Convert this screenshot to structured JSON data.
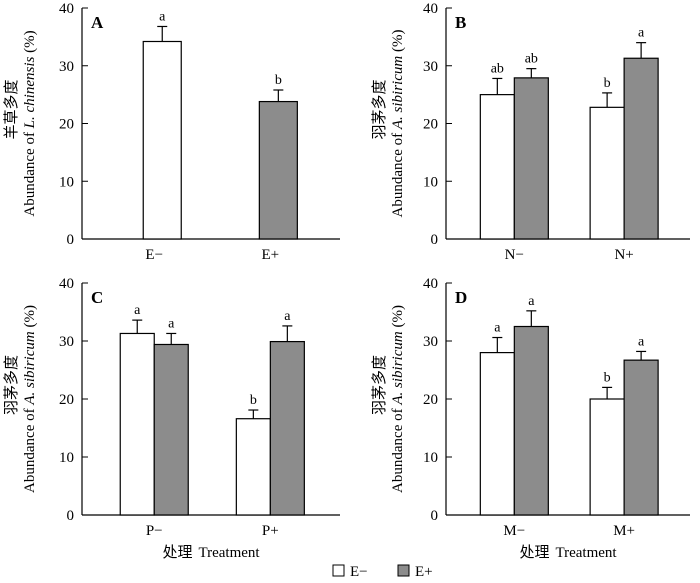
{
  "chart_data": [
    {
      "panel": "A",
      "type": "bar",
      "categories": [
        "E−",
        "E+"
      ],
      "series": [
        {
          "name": "E−",
          "values": [
            34.2,
            null
          ],
          "errors": [
            2.6,
            null
          ],
          "letters": [
            "a",
            ""
          ]
        },
        {
          "name": "E+",
          "values": [
            null,
            23.8
          ],
          "errors": [
            null,
            2.0
          ],
          "letters": [
            "",
            "b"
          ]
        }
      ],
      "ylabel_cn": "羊草多度",
      "ylabel_prefix": "Abundance of ",
      "ylabel_species": "L. chinensis",
      "ylabel_unit": " (%)",
      "xlabel_cn": "",
      "xlabel_en": "",
      "ylim": [
        0,
        40
      ],
      "yticks": [
        0,
        10,
        20,
        30,
        40
      ]
    },
    {
      "panel": "B",
      "type": "bar",
      "categories": [
        "N−",
        "N+"
      ],
      "series": [
        {
          "name": "E−",
          "values": [
            25.0,
            22.8
          ],
          "errors": [
            2.8,
            2.5
          ],
          "letters": [
            "ab",
            "b"
          ]
        },
        {
          "name": "E+",
          "values": [
            27.9,
            31.3
          ],
          "errors": [
            1.6,
            2.7
          ],
          "letters": [
            "ab",
            "a"
          ]
        }
      ],
      "ylabel_cn": "羽茅多度",
      "ylabel_prefix": "Abundance of ",
      "ylabel_species": "A. sibiricum",
      "ylabel_unit": " (%)",
      "xlabel_cn": "",
      "xlabel_en": "",
      "ylim": [
        0,
        40
      ],
      "yticks": [
        0,
        10,
        20,
        30,
        40
      ]
    },
    {
      "panel": "C",
      "type": "bar",
      "categories": [
        "P−",
        "P+"
      ],
      "series": [
        {
          "name": "E−",
          "values": [
            31.3,
            16.6
          ],
          "errors": [
            2.3,
            1.5
          ],
          "letters": [
            "a",
            "b"
          ]
        },
        {
          "name": "E+",
          "values": [
            29.4,
            29.9
          ],
          "errors": [
            1.9,
            2.7
          ],
          "letters": [
            "a",
            "a"
          ]
        }
      ],
      "ylabel_cn": "羽茅多度",
      "ylabel_prefix": "Abundance of ",
      "ylabel_species": "A. sibiricum",
      "ylabel_unit": " (%)",
      "xlabel_cn": "处理",
      "xlabel_en": "Treatment",
      "ylim": [
        0,
        40
      ],
      "yticks": [
        0,
        10,
        20,
        30,
        40
      ]
    },
    {
      "panel": "D",
      "type": "bar",
      "categories": [
        "M−",
        "M+"
      ],
      "series": [
        {
          "name": "E−",
          "values": [
            28.0,
            20.0
          ],
          "errors": [
            2.6,
            2.0
          ],
          "letters": [
            "a",
            "b"
          ]
        },
        {
          "name": "E+",
          "values": [
            32.5,
            26.7
          ],
          "errors": [
            2.7,
            1.5
          ],
          "letters": [
            "a",
            "a"
          ]
        }
      ],
      "ylabel_cn": "羽茅多度",
      "ylabel_prefix": "Abundance of ",
      "ylabel_species": "A. sibiricum",
      "ylabel_unit": " (%)",
      "xlabel_cn": "处理",
      "xlabel_en": "Treatment",
      "ylim": [
        0,
        40
      ],
      "yticks": [
        0,
        10,
        20,
        30,
        40
      ]
    }
  ],
  "legend": {
    "items": [
      {
        "label": "E−",
        "color": "#ffffff"
      },
      {
        "label": "E+",
        "color": "#8c8c8c"
      }
    ],
    "placement": "bottom-center"
  },
  "colors": {
    "open_bar": "#ffffff",
    "filled_bar": "#8c8c8c",
    "stroke": "#000000"
  }
}
